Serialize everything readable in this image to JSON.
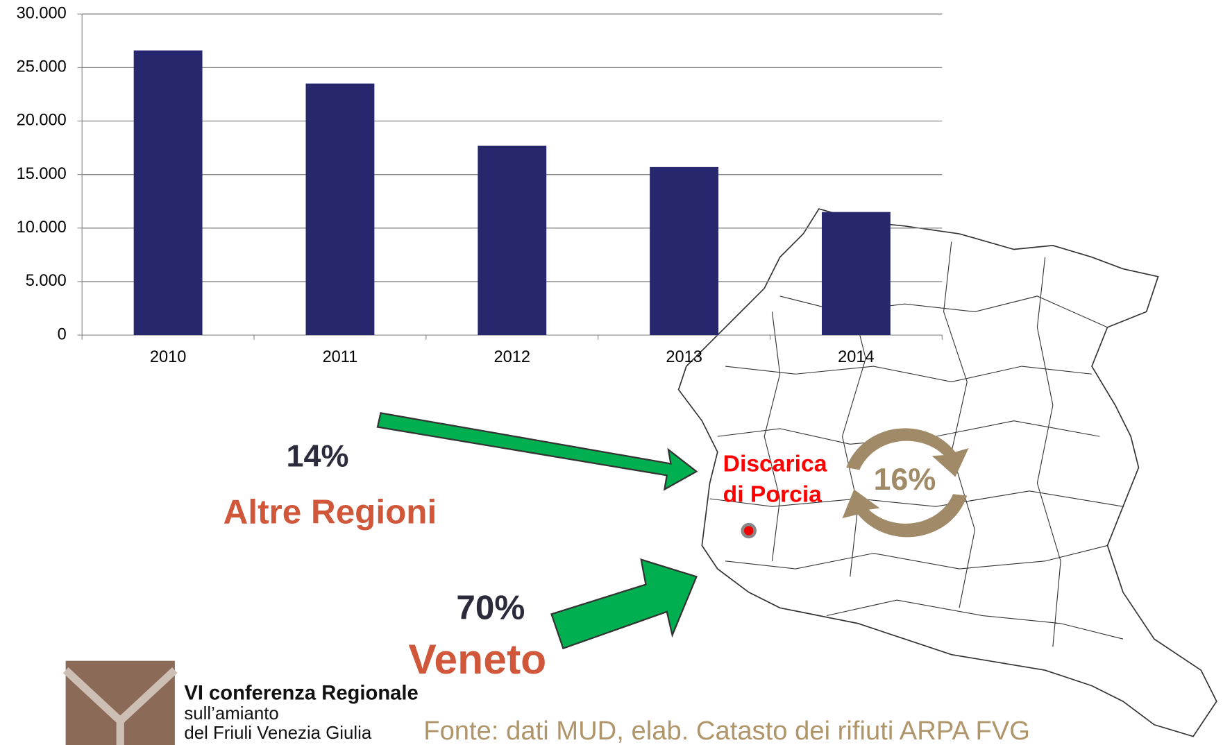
{
  "chart_data": {
    "type": "bar",
    "categories": [
      "2010",
      "2011",
      "2012",
      "2013",
      "2014"
    ],
    "values": [
      26600,
      23500,
      17700,
      15700,
      11500
    ],
    "color": "#27276e",
    "ylim": [
      0,
      30000
    ],
    "yticks": [
      0,
      {
        "value": 5000,
        "label": "5.000"
      },
      {
        "value": 10000,
        "label": "10.000"
      },
      {
        "value": 15000,
        "label": "15.000"
      },
      {
        "value": 20000,
        "label": "20.000"
      },
      {
        "value": 25000,
        "label": "25.000"
      },
      {
        "value": 30000,
        "label": "30.000"
      }
    ],
    "grid": true
  },
  "slide": {
    "share_other": "14%",
    "label_other": "Altre Regioni",
    "share_veneto": "70%",
    "label_veneto": "Veneto",
    "site_line1": "Discarica",
    "site_line2": "di Porcia",
    "share_local": "16%",
    "logo_line1": "VI conferenza Regionale",
    "logo_line2": "sull’amianto",
    "logo_line3": "del Friuli Venezia Giulia",
    "source": "Fonte: dati MUD, elab. Catasto dei rifiuti ARPA FVG"
  }
}
